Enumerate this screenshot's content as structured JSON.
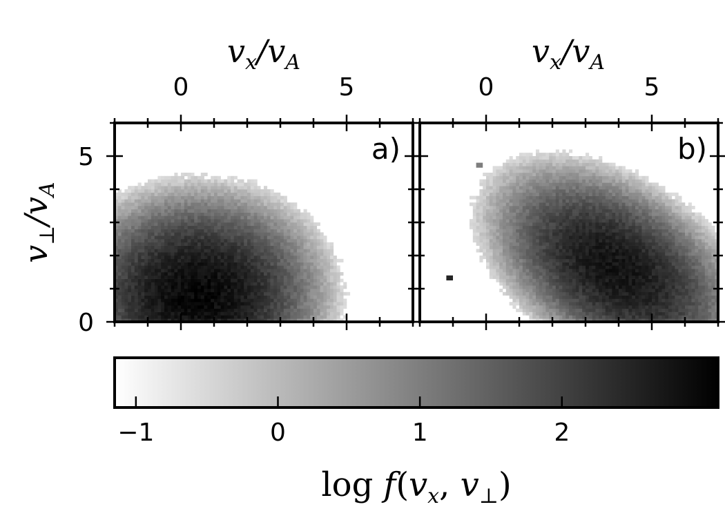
{
  "chart_data": [
    {
      "type": "heatmap",
      "panel_label": "a)",
      "xlim": [
        -2,
        7
      ],
      "ylim": [
        0,
        6
      ],
      "x_ticks": [
        0,
        5
      ],
      "y_ticks": [
        0,
        5
      ],
      "blobs": [
        {
          "x": 0.5,
          "y": 0.8,
          "sx": 1.1,
          "sy": 0.9,
          "rho": 0,
          "peak": 3.0
        }
      ],
      "outliers": []
    },
    {
      "type": "heatmap",
      "panel_label": "b)",
      "xlim": [
        -2,
        7
      ],
      "ylim": [
        0,
        6
      ],
      "x_ticks": [
        0,
        5
      ],
      "y_ticks": [
        0,
        5
      ],
      "blobs": [
        {
          "x": 3.9,
          "y": 1.6,
          "sx": 1.1,
          "sy": 0.9,
          "rho": -0.45,
          "peak": 2.8
        }
      ],
      "outliers": [
        {
          "x": -0.2,
          "y": 4.7,
          "value": 1.0
        },
        {
          "x": -1.1,
          "y": 1.3,
          "value": 2.5
        }
      ]
    }
  ],
  "axes": {
    "xlabel": "v_x / v_A",
    "ylabel": "v_⊥ / v_A"
  },
  "colorbar": {
    "label": "log f(v_x, v_⊥)",
    "range": [
      -1.15,
      3.1
    ],
    "ticks": [
      -1,
      0,
      1,
      2
    ],
    "tick_labels": [
      "−1",
      "0",
      "1",
      "2"
    ],
    "colormap": "greys",
    "color_low": "#ffffff",
    "color_high": "#000000"
  }
}
